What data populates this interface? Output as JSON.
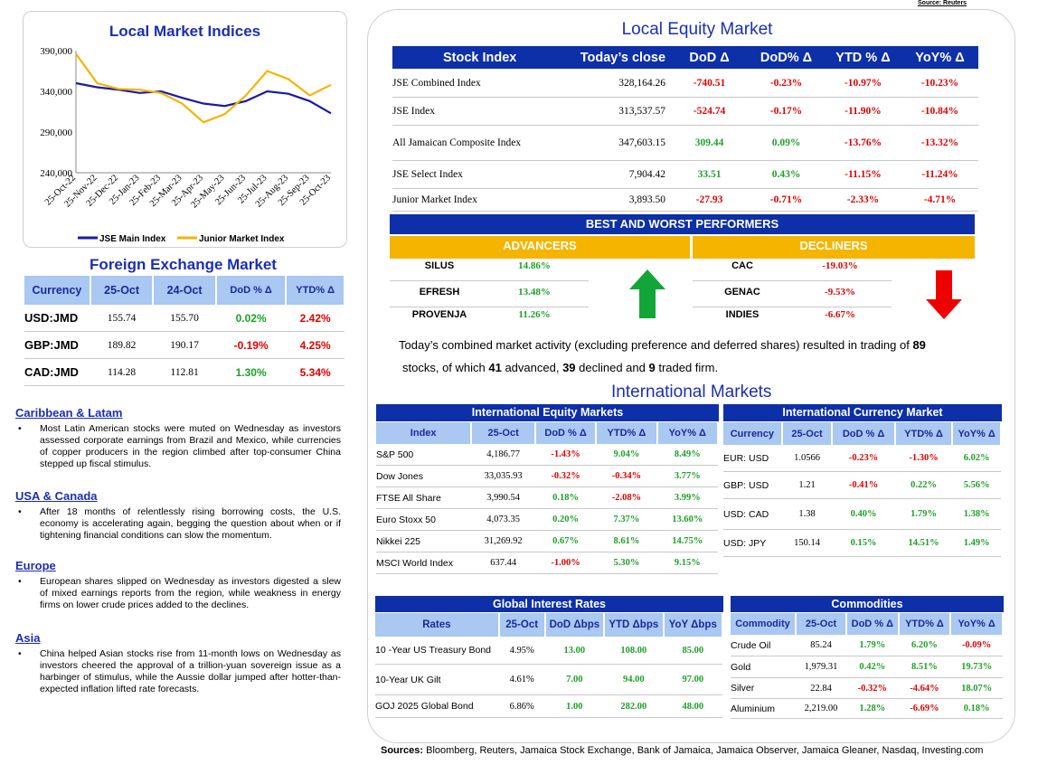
{
  "source_top": "Source: Reuters",
  "local_indices": {
    "title": "Local Market Indices",
    "chart_data": {
      "type": "line",
      "x": [
        "25-Oct-22",
        "25-Nov-22",
        "25-Dec-22",
        "25-Jan-23",
        "25-Feb-23",
        "25-Mar-23",
        "25-Apr-23",
        "25-May-23",
        "25-Jun-23",
        "25-Jul-23",
        "25-Aug-23",
        "25-Sep-23",
        "25-Oct-23"
      ],
      "ylim": [
        240000,
        390000
      ],
      "yticks": [
        "240,000",
        "290,000",
        "340,000",
        "390,000"
      ],
      "series": [
        {
          "name": "JSE Main Index",
          "color": "#1a1aa6",
          "values": [
            350000,
            345000,
            342000,
            338000,
            340000,
            332000,
            325000,
            322000,
            328000,
            340000,
            337000,
            328000,
            313000
          ]
        },
        {
          "name": "Junior Market Index",
          "color": "#f5b400",
          "values": [
            386000,
            350000,
            343000,
            342000,
            338000,
            325000,
            302000,
            312000,
            335000,
            365000,
            355000,
            335000,
            348000
          ]
        }
      ]
    }
  },
  "fx": {
    "title": "Foreign Exchange Market",
    "headers": [
      "Currency",
      "25-Oct",
      "24-Oct",
      "DoD % Δ",
      "YTD% Δ"
    ],
    "rows": [
      [
        "USD:JMD",
        "155.74",
        "155.70",
        "0.02%",
        "2.42%"
      ],
      [
        "GBP:JMD",
        "189.82",
        "190.17",
        "-0.19%",
        "4.25%"
      ],
      [
        "CAD:JMD",
        "114.28",
        "112.81",
        "1.30%",
        "5.34%"
      ]
    ]
  },
  "news": [
    {
      "heading": "Caribbean & Latam",
      "text": "Most Latin American stocks were muted on Wednesday as investors assessed corporate earnings from Brazil and Mexico, while currencies of copper producers in the region climbed after top-consumer China stepped up fiscal stimulus."
    },
    {
      "heading": "USA & Canada",
      "text": "After 18 months of relentlessly rising borrowing costs, the U.S. economy is accelerating again, begging the question about when or if tightening financial conditions can slow the momentum."
    },
    {
      "heading": "Europe",
      "text": "European shares slipped on Wednesday as investors digested a slew of mixed earnings reports from the region, while weakness in energy firms on lower crude prices added to the declines."
    },
    {
      "heading": "Asia",
      "text": "China helped Asian stocks rise from 11-month lows on Wednesday as investors cheered the approval of a trillion-yuan sovereign issue as a harbinger of stimulus, while the Aussie dollar jumped after hotter-than-expected inflation lifted rate forecasts."
    }
  ],
  "equity": {
    "title": "Local Equity Market",
    "headers": [
      "Stock Index",
      "Today’s close",
      "DoD  Δ",
      "DoD% Δ",
      "YTD % Δ",
      "YoY% Δ"
    ],
    "rows": [
      [
        "JSE Combined Index",
        "328,164.26",
        "-740.51",
        "-0.23%",
        "-10.97%",
        "-10.23%"
      ],
      [
        "JSE Index",
        "313,537.57",
        "-524.74",
        "-0.17%",
        "-11.90%",
        "-10.84%"
      ],
      [
        "All Jamaican Composite Index",
        "347,603.15",
        "309.44",
        "0.09%",
        "-13.76%",
        "-13.32%"
      ],
      [
        "JSE Select Index",
        "7,904.42",
        "33.51",
        "0.43%",
        "-11.15%",
        "-11.24%"
      ],
      [
        "Junior Market Index",
        "3,893.50",
        "-27.93",
        "-0.71%",
        "-2.33%",
        "-4.71%"
      ]
    ]
  },
  "performers": {
    "title": "BEST AND WORST PERFORMERS",
    "adv_label": "ADVANCERS",
    "dec_label": "DECLINERS",
    "advancers": [
      [
        "SILUS",
        "14.86%"
      ],
      [
        "EFRESH",
        "13.48%"
      ],
      [
        "PROVENJA",
        "11.26%"
      ]
    ],
    "decliners": [
      [
        "CAC",
        "-19.03%"
      ],
      [
        "GENAC",
        "-9.53%"
      ],
      [
        "INDIES",
        "-6.67%"
      ]
    ]
  },
  "summary": {
    "p1": "Today’s combined market activity (excluding preference and deferred shares) resulted in trading of ",
    "n_total": "89",
    "p2": "stocks, of which ",
    "n_adv": "41",
    "p3": " advanced, ",
    "n_dec": "39",
    "p4": " declined and ",
    "n_firm": "9",
    "p5": " traded firm."
  },
  "intl_title": "International Markets",
  "intl_equity": {
    "title": "International Equity Markets",
    "headers": [
      "Index",
      "25-Oct",
      "DoD % Δ",
      "YTD% Δ",
      "YoY% Δ"
    ],
    "rows": [
      [
        "S&P 500",
        "4,186.77",
        "-1.43%",
        "9.04%",
        "8.49%"
      ],
      [
        "Dow Jones",
        "33,035.93",
        "-0.32%",
        "-0.34%",
        "3.77%"
      ],
      [
        "FTSE All Share",
        "3,990.54",
        "0.18%",
        "-2.08%",
        "3.99%"
      ],
      [
        "Euro Stoxx 50",
        "4,073.35",
        "0.20%",
        "7.37%",
        "13.60%"
      ],
      [
        "Nikkei 225",
        "31,269.92",
        "0.67%",
        "8.61%",
        "14.75%"
      ],
      [
        "MSCI World Index",
        "637.44",
        "-1.00%",
        "5.30%",
        "9.15%"
      ]
    ]
  },
  "intl_currency": {
    "title": "International Currency Market",
    "headers": [
      "Currency",
      "25-Oct",
      "DoD % Δ",
      "YTD% Δ",
      "YoY% Δ"
    ],
    "rows": [
      [
        "EUR: USD",
        "1.0566",
        "-0.23%",
        "-1.30%",
        "6.02%"
      ],
      [
        "GBP: USD",
        "1.21",
        "-0.41%",
        "0.22%",
        "5.56%"
      ],
      [
        "USD: CAD",
        "1.38",
        "0.40%",
        "1.79%",
        "1.38%"
      ],
      [
        "USD: JPY",
        "150.14",
        "0.15%",
        "14.51%",
        "1.49%"
      ]
    ]
  },
  "rates": {
    "title": "Global Interest Rates",
    "headers": [
      "Rates",
      "25-Oct",
      "DoD Δbps",
      "YTD Δbps",
      "YoY Δbps"
    ],
    "rows": [
      [
        "10 -Year US Treasury Bond",
        "4.95%",
        "13.00",
        "108.00",
        "85.00"
      ],
      [
        "10-Year UK Gilt",
        "4.61%",
        "7.00",
        "94.00",
        "97.00"
      ],
      [
        "GOJ 2025 Global Bond",
        "6.86%",
        "1.00",
        "282.00",
        "48.00"
      ]
    ]
  },
  "commodities": {
    "title": "Commodities",
    "headers": [
      "Commodity",
      "25-Oct",
      "DoD % Δ",
      "YTD% Δ",
      "YoY% Δ"
    ],
    "rows": [
      [
        "Crude Oil",
        "85.24",
        "1.79%",
        "6.20%",
        "-0.09%"
      ],
      [
        "Gold",
        "1,979.31",
        "0.42%",
        "8.51%",
        "19.73%"
      ],
      [
        "Silver",
        "22.84",
        "-0.32%",
        "-4.64%",
        "18.07%"
      ],
      [
        "Aluminium",
        "2,219.00",
        "1.28%",
        "-6.69%",
        "0.18%"
      ]
    ]
  },
  "sources": {
    "label": "Sources:",
    "text": " Bloomberg, Reuters, Jamaica Stock Exchange, Bank of Jamaica, Jamaica Observer, Jamaica Gleaner, Nasdaq, Investing.com"
  },
  "colors": {
    "navy": "#0d2fa8",
    "light_blue": "#a9c8f2",
    "gold": "#f5b400",
    "red": "#e00000",
    "green": "#1fa028"
  }
}
